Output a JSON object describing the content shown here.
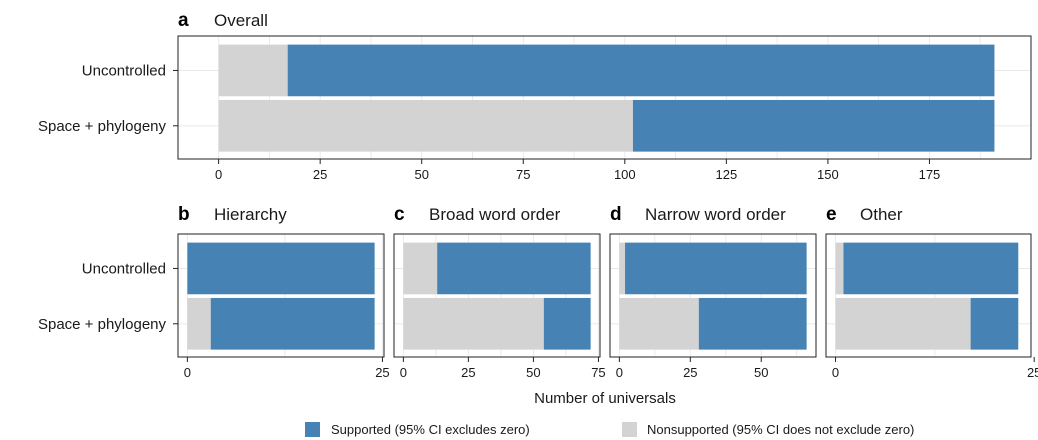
{
  "colors": {
    "supported": "#4682b4",
    "nonsupported": "#d3d3d3"
  },
  "xlabel": "Number of universals",
  "legend": {
    "position": "bottom",
    "items": [
      {
        "key": "supported",
        "label": "Supported (95% CI excludes zero)"
      },
      {
        "key": "nonsupported",
        "label": "Nonsupported (95% CI does not exclude zero)"
      }
    ]
  },
  "chart_data": [
    {
      "type": "bar",
      "orientation": "horizontal",
      "stacked": true,
      "panel": "a",
      "title": "Overall",
      "categories": [
        "Uncontrolled",
        "Space + phylogeny"
      ],
      "series": [
        {
          "name": "Nonsupported (95% CI does not exclude zero)",
          "values": [
            17,
            102
          ]
        },
        {
          "name": "Supported (95% CI excludes zero)",
          "values": [
            174,
            89
          ]
        }
      ],
      "xlim": [
        -10,
        200
      ],
      "xticks": [
        0,
        25,
        50,
        75,
        100,
        125,
        150,
        175
      ],
      "grid": true
    },
    {
      "type": "bar",
      "orientation": "horizontal",
      "stacked": true,
      "panel": "b",
      "title": "Hierarchy",
      "categories": [
        "Uncontrolled",
        "Space + phylogeny"
      ],
      "series": [
        {
          "name": "Nonsupported (95% CI does not exclude zero)",
          "values": [
            0,
            3
          ]
        },
        {
          "name": "Supported (95% CI excludes zero)",
          "values": [
            24,
            21
          ]
        }
      ],
      "xlim": [
        -1.2,
        25.2
      ],
      "xticks": [
        0,
        25
      ],
      "grid": true
    },
    {
      "type": "bar",
      "orientation": "horizontal",
      "stacked": true,
      "panel": "c",
      "title": "Broad word order",
      "categories": [
        "Uncontrolled",
        "Space + phylogeny"
      ],
      "series": [
        {
          "name": "Nonsupported (95% CI does not exclude zero)",
          "values": [
            13,
            54
          ]
        },
        {
          "name": "Supported (95% CI excludes zero)",
          "values": [
            59,
            18
          ]
        }
      ],
      "xlim": [
        -3.6,
        75.6
      ],
      "xticks": [
        0,
        25,
        50,
        75
      ],
      "grid": true
    },
    {
      "type": "bar",
      "orientation": "horizontal",
      "stacked": true,
      "panel": "d",
      "title": "Narrow word order",
      "categories": [
        "Uncontrolled",
        "Space + phylogeny"
      ],
      "series": [
        {
          "name": "Nonsupported (95% CI does not exclude zero)",
          "values": [
            2,
            28
          ]
        },
        {
          "name": "Supported (95% CI excludes zero)",
          "values": [
            64,
            38
          ]
        }
      ],
      "xlim": [
        -3.3,
        69.3
      ],
      "xticks": [
        0,
        25,
        50
      ],
      "grid": true
    },
    {
      "type": "bar",
      "orientation": "horizontal",
      "stacked": true,
      "panel": "e",
      "title": "Other",
      "categories": [
        "Uncontrolled",
        "Space + phylogeny"
      ],
      "series": [
        {
          "name": "Nonsupported (95% CI does not exclude zero)",
          "values": [
            1,
            17
          ]
        },
        {
          "name": "Supported (95% CI excludes zero)",
          "values": [
            22,
            6
          ]
        }
      ],
      "xlim": [
        -1.2,
        24.6
      ],
      "xticks": [
        0,
        25
      ],
      "grid": true
    }
  ]
}
